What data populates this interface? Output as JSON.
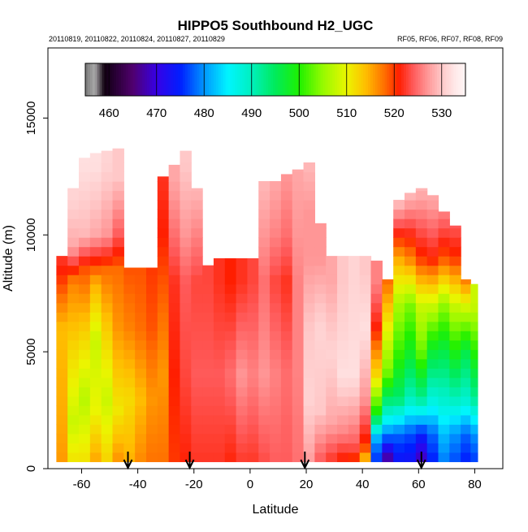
{
  "chart_data": {
    "type": "heatmap",
    "title": "HIPPO5 Southbound H2_UGC",
    "subtitle_left": "20110819, 20110822, 20110824, 20110827, 20110829",
    "subtitle_right": "RF05, RF06, RF07, RF08, RF09",
    "xlabel": "Latitude",
    "ylabel": "Altitude (m)",
    "xlim": [
      -72,
      90
    ],
    "ylim": [
      0,
      18000
    ],
    "x_ticks": [
      -60,
      -40,
      -20,
      0,
      20,
      40,
      60,
      80
    ],
    "x_tick_labels": [
      "-60",
      "-40",
      "-20",
      "0",
      "20",
      "40",
      "60",
      "80"
    ],
    "y_ticks": [
      0,
      5000,
      10000,
      15000
    ],
    "y_tick_labels": [
      "0",
      "5000",
      "10000",
      "15000"
    ],
    "colorbar": {
      "range": [
        455,
        535
      ],
      "ticks": [
        460,
        470,
        480,
        490,
        500,
        510,
        520,
        530
      ],
      "tick_labels": [
        "460",
        "470",
        "480",
        "490",
        "500",
        "510",
        "520",
        "530"
      ]
    },
    "arrow_latitudes": [
      -43.5,
      -21.5,
      19.5,
      61
    ],
    "columns": [
      {
        "lat": -67,
        "top": 9100,
        "base": 300,
        "profile": [
          [
            0,
            516
          ],
          [
            2000,
            515
          ],
          [
            6000,
            514
          ],
          [
            8800,
            522
          ]
        ]
      },
      {
        "lat": -63,
        "top": 12000,
        "base": 300,
        "profile": [
          [
            0,
            512
          ],
          [
            2000,
            508
          ],
          [
            5000,
            512
          ],
          [
            8000,
            517
          ],
          [
            9500,
            528
          ],
          [
            11500,
            531
          ]
        ]
      },
      {
        "lat": -59,
        "top": 13300,
        "base": 300,
        "profile": [
          [
            0,
            512
          ],
          [
            3000,
            507
          ],
          [
            6000,
            513
          ],
          [
            8500,
            519
          ],
          [
            10000,
            529
          ],
          [
            13000,
            532
          ]
        ]
      },
      {
        "lat": -55,
        "top": 13500,
        "base": 300,
        "profile": [
          [
            0,
            516
          ],
          [
            2500,
            510
          ],
          [
            5500,
            508
          ],
          [
            8000,
            515
          ],
          [
            10000,
            528
          ],
          [
            13000,
            532
          ]
        ]
      },
      {
        "lat": -51,
        "top": 13600,
        "base": 300,
        "profile": [
          [
            0,
            513
          ],
          [
            3000,
            508
          ],
          [
            6000,
            513
          ],
          [
            8500,
            518
          ],
          [
            10000,
            527
          ],
          [
            13000,
            531
          ]
        ]
      },
      {
        "lat": -47,
        "top": 13700,
        "base": 300,
        "profile": [
          [
            0,
            517
          ],
          [
            2500,
            511
          ],
          [
            6000,
            516
          ],
          [
            8500,
            518
          ],
          [
            10000,
            524
          ],
          [
            12500,
            530
          ]
        ]
      },
      {
        "lat": -43,
        "top": 8600,
        "base": 300,
        "profile": [
          [
            0,
            515
          ],
          [
            3000,
            512
          ],
          [
            6000,
            517
          ],
          [
            8500,
            519
          ]
        ]
      },
      {
        "lat": -39,
        "top": 8600,
        "base": 300,
        "profile": [
          [
            0,
            517
          ],
          [
            3000,
            514
          ],
          [
            6000,
            518
          ],
          [
            8500,
            519
          ]
        ]
      },
      {
        "lat": -35,
        "top": 8600,
        "base": 300,
        "profile": [
          [
            0,
            518
          ],
          [
            3000,
            516
          ],
          [
            6000,
            519
          ],
          [
            8500,
            520
          ]
        ]
      },
      {
        "lat": -31,
        "top": 12500,
        "base": 300,
        "profile": [
          [
            0,
            518
          ],
          [
            4000,
            516
          ],
          [
            8000,
            519
          ],
          [
            10000,
            521
          ],
          [
            12500,
            522
          ]
        ]
      },
      {
        "lat": -27,
        "top": 13000,
        "base": 300,
        "profile": [
          [
            0,
            520
          ],
          [
            4000,
            521
          ],
          [
            8000,
            522
          ],
          [
            10000,
            525
          ],
          [
            12500,
            528
          ]
        ]
      },
      {
        "lat": -23,
        "top": 13600,
        "base": 300,
        "profile": [
          [
            0,
            521
          ],
          [
            4000,
            523
          ],
          [
            8000,
            524
          ],
          [
            10000,
            527
          ],
          [
            13000,
            530
          ]
        ]
      },
      {
        "lat": -19,
        "top": 12000,
        "base": 300,
        "profile": [
          [
            0,
            522
          ],
          [
            4000,
            524
          ],
          [
            8000,
            523
          ],
          [
            10000,
            526
          ],
          [
            12000,
            529
          ]
        ]
      },
      {
        "lat": -15,
        "top": 8700,
        "base": 300,
        "profile": [
          [
            0,
            522
          ],
          [
            4000,
            524
          ],
          [
            8000,
            523
          ]
        ]
      },
      {
        "lat": -11,
        "top": 9000,
        "base": 300,
        "profile": [
          [
            0,
            522
          ],
          [
            4000,
            524
          ],
          [
            8000,
            522
          ]
        ]
      },
      {
        "lat": -7,
        "top": 9000,
        "base": 300,
        "profile": [
          [
            0,
            521
          ],
          [
            4000,
            525
          ],
          [
            8000,
            521
          ]
        ]
      },
      {
        "lat": -3,
        "top": 9000,
        "base": 300,
        "profile": [
          [
            0,
            522
          ],
          [
            4000,
            527
          ],
          [
            8000,
            522
          ]
        ]
      },
      {
        "lat": 1,
        "top": 9000,
        "base": 300,
        "profile": [
          [
            0,
            522
          ],
          [
            4000,
            526
          ],
          [
            8000,
            523
          ]
        ]
      },
      {
        "lat": 5,
        "top": 12300,
        "base": 300,
        "profile": [
          [
            0,
            523
          ],
          [
            4000,
            527
          ],
          [
            8000,
            525
          ],
          [
            10000,
            527
          ],
          [
            12300,
            529
          ]
        ]
      },
      {
        "lat": 9,
        "top": 12300,
        "base": 300,
        "profile": [
          [
            0,
            524
          ],
          [
            4000,
            526
          ],
          [
            8000,
            523
          ],
          [
            10000,
            526
          ],
          [
            12300,
            528
          ]
        ]
      },
      {
        "lat": 13,
        "top": 12600,
        "base": 300,
        "profile": [
          [
            0,
            524
          ],
          [
            4000,
            525
          ],
          [
            8000,
            522
          ],
          [
            10000,
            525
          ],
          [
            12500,
            527
          ]
        ]
      },
      {
        "lat": 17,
        "top": 12800,
        "base": 300,
        "profile": [
          [
            0,
            525
          ],
          [
            4000,
            526
          ],
          [
            8000,
            526
          ],
          [
            10000,
            527
          ],
          [
            12700,
            528
          ]
        ]
      },
      {
        "lat": 21,
        "top": 13100,
        "base": 300,
        "profile": [
          [
            0,
            527
          ],
          [
            3000,
            531
          ],
          [
            6000,
            530
          ],
          [
            9000,
            527
          ],
          [
            11000,
            527
          ],
          [
            13000,
            529
          ]
        ]
      },
      {
        "lat": 25,
        "top": 10500,
        "base": 300,
        "profile": [
          [
            0,
            523
          ],
          [
            2500,
            530
          ],
          [
            6000,
            531
          ],
          [
            9000,
            527
          ],
          [
            10500,
            527
          ]
        ]
      },
      {
        "lat": 29,
        "top": 9100,
        "base": 300,
        "profile": [
          [
            0,
            521
          ],
          [
            2000,
            528
          ],
          [
            5000,
            531
          ],
          [
            8000,
            528
          ]
        ]
      },
      {
        "lat": 33,
        "top": 9100,
        "base": 300,
        "profile": [
          [
            0,
            519
          ],
          [
            1500,
            526
          ],
          [
            4000,
            532
          ],
          [
            8000,
            530
          ]
        ]
      },
      {
        "lat": 37,
        "top": 9100,
        "base": 300,
        "profile": [
          [
            0,
            517
          ],
          [
            1000,
            524
          ],
          [
            4000,
            532
          ],
          [
            8000,
            531
          ]
        ]
      },
      {
        "lat": 41,
        "top": 9100,
        "base": 300,
        "profile": [
          [
            0,
            510
          ],
          [
            1000,
            520
          ],
          [
            3000,
            527
          ],
          [
            6000,
            532
          ],
          [
            8500,
            530
          ]
        ]
      },
      {
        "lat": 45,
        "top": 8900,
        "base": 300,
        "profile": [
          [
            0,
            474
          ],
          [
            1200,
            480
          ],
          [
            2500,
            500
          ],
          [
            4000,
            512
          ],
          [
            6000,
            521
          ],
          [
            8000,
            526
          ]
        ]
      },
      {
        "lat": 49,
        "top": 8100,
        "base": 300,
        "profile": [
          [
            0,
            462
          ],
          [
            1200,
            476
          ],
          [
            2500,
            490
          ],
          [
            4000,
            503
          ],
          [
            6000,
            510
          ],
          [
            8000,
            518
          ]
        ]
      },
      {
        "lat": 53,
        "top": 11500,
        "base": 300,
        "profile": [
          [
            0,
            472
          ],
          [
            1500,
            478
          ],
          [
            3000,
            494
          ],
          [
            5000,
            501
          ],
          [
            7000,
            506
          ],
          [
            9000,
            515
          ],
          [
            11500,
            530
          ]
        ]
      },
      {
        "lat": 57,
        "top": 11800,
        "base": 300,
        "profile": [
          [
            0,
            472
          ],
          [
            1500,
            477
          ],
          [
            3000,
            490
          ],
          [
            5000,
            498
          ],
          [
            7000,
            504
          ],
          [
            9000,
            517
          ],
          [
            11700,
            529
          ]
        ]
      },
      {
        "lat": 61,
        "top": 12000,
        "base": 300,
        "profile": [
          [
            0,
            466
          ],
          [
            1500,
            475
          ],
          [
            3000,
            492
          ],
          [
            5000,
            503
          ],
          [
            7000,
            508
          ],
          [
            9000,
            520
          ],
          [
            12000,
            529
          ]
        ]
      },
      {
        "lat": 65,
        "top": 11700,
        "base": 300,
        "profile": [
          [
            0,
            474
          ],
          [
            1500,
            478
          ],
          [
            3000,
            488
          ],
          [
            5000,
            497
          ],
          [
            7000,
            508
          ],
          [
            9000,
            521
          ],
          [
            11500,
            528
          ]
        ]
      },
      {
        "lat": 69,
        "top": 11000,
        "base": 300,
        "profile": [
          [
            0,
            478
          ],
          [
            1500,
            482
          ],
          [
            3000,
            489
          ],
          [
            5000,
            496
          ],
          [
            7000,
            505
          ],
          [
            9000,
            519
          ],
          [
            11000,
            526
          ]
        ]
      },
      {
        "lat": 73,
        "top": 10400,
        "base": 300,
        "profile": [
          [
            0,
            476
          ],
          [
            1500,
            480
          ],
          [
            3000,
            490
          ],
          [
            5000,
            499
          ],
          [
            7000,
            508
          ],
          [
            9000,
            520
          ],
          [
            10400,
            524
          ]
        ]
      },
      {
        "lat": 77,
        "top": 8100,
        "base": 300,
        "profile": [
          [
            0,
            474
          ],
          [
            1500,
            478
          ],
          [
            3000,
            489
          ],
          [
            5000,
            496
          ],
          [
            7000,
            509
          ],
          [
            8000,
            517
          ]
        ]
      },
      {
        "lat": 80,
        "top": 7900,
        "base": 300,
        "profile": [
          [
            0,
            475
          ],
          [
            1500,
            480
          ],
          [
            3000,
            492
          ],
          [
            5000,
            500
          ],
          [
            7000,
            508
          ]
        ]
      }
    ]
  }
}
